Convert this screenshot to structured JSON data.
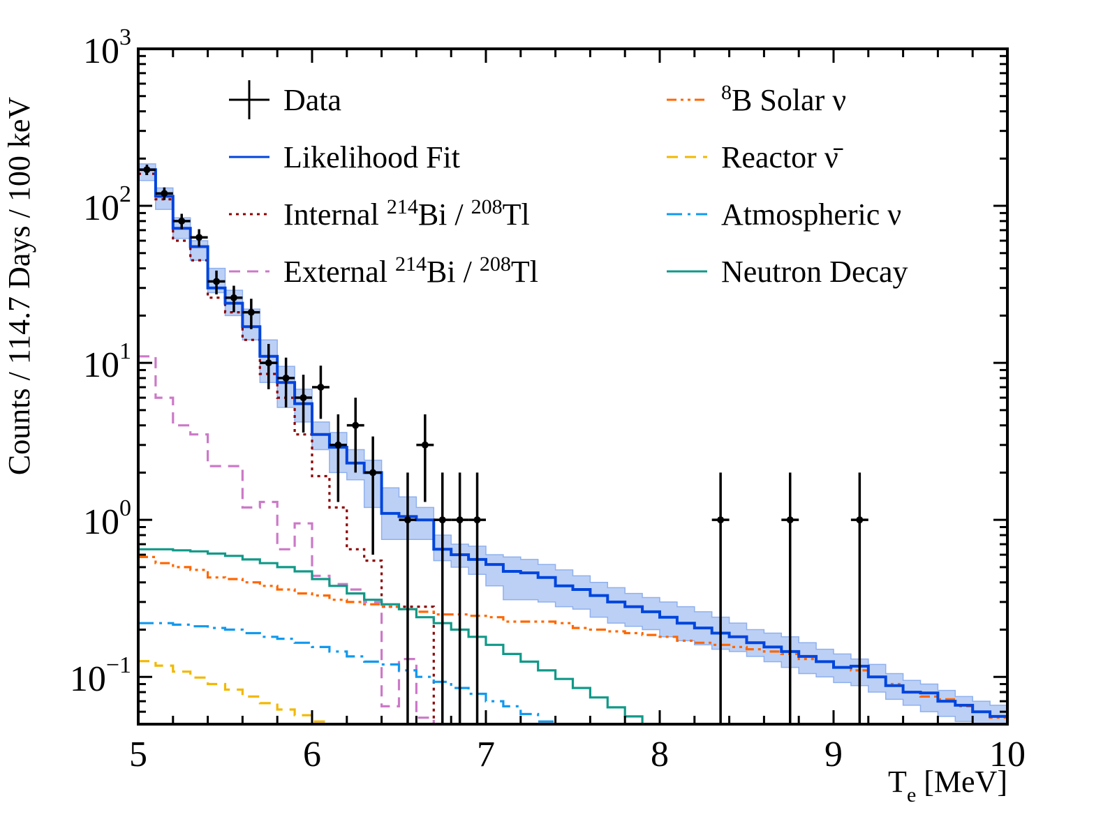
{
  "chart_data": {
    "type": "line",
    "subtype": "step-histogram-with-errorbars",
    "title": "",
    "xlabel": "T_e [MeV]",
    "xlabel_main": "T",
    "xlabel_sub": "e",
    "xlabel_rest": " [MeV]",
    "ylabel": "Counts / 114.7 Days / 100 keV",
    "xlim": [
      5,
      10
    ],
    "ylim": [
      0.05,
      1000
    ],
    "yscale": "log",
    "grid": false,
    "legend_placement": "top (two columns)",
    "x_ticks": [
      "5",
      "6",
      "7",
      "8",
      "9",
      "10"
    ],
    "y_ticks": [
      {
        "base": "10",
        "exp": "3",
        "value": 1000
      },
      {
        "base": "10",
        "exp": "2",
        "value": 100
      },
      {
        "base": "10",
        "exp": "1",
        "value": 10
      },
      {
        "base": "10",
        "exp": "0",
        "value": 1
      },
      {
        "base": "10",
        "exp": "−1",
        "value": 0.1
      }
    ],
    "bin_edges_start": 5.0,
    "bin_width": 0.1,
    "data": {
      "name": "Data",
      "x": [
        5.05,
        5.15,
        5.25,
        5.35,
        5.45,
        5.55,
        5.65,
        5.75,
        5.85,
        5.95,
        6.05,
        6.15,
        6.25,
        6.35,
        6.55,
        6.65,
        6.75,
        6.85,
        6.95,
        8.35,
        8.75,
        9.15
      ],
      "y": [
        170,
        120,
        80,
        63,
        33,
        26,
        21,
        10,
        8,
        6,
        7,
        3,
        4,
        2,
        1,
        3,
        1,
        1,
        1,
        1,
        1,
        1
      ],
      "err_low": [
        13,
        11,
        9,
        8,
        5.7,
        5,
        4.6,
        3.2,
        2.8,
        2.4,
        2.6,
        1.7,
        2,
        1.4,
        1,
        1.7,
        1,
        1,
        1,
        1,
        1,
        1
      ],
      "err_high": [
        13,
        11,
        9,
        8,
        5.7,
        5,
        4.6,
        3.2,
        2.8,
        2.4,
        2.6,
        1.7,
        2,
        1.4,
        1,
        1.7,
        1,
        1,
        1,
        1,
        1,
        1
      ]
    },
    "series": [
      {
        "name": "Likelihood Fit",
        "color": "#0044dd",
        "style": "solid",
        "values": [
          170,
          115,
          72,
          55,
          30,
          24,
          17,
          11,
          7.5,
          5.5,
          3.5,
          2.9,
          2.3,
          2.0,
          1.1,
          1.05,
          1.0,
          0.65,
          0.6,
          0.56,
          0.52,
          0.47,
          0.46,
          0.43,
          0.38,
          0.36,
          0.33,
          0.3,
          0.28,
          0.26,
          0.24,
          0.22,
          0.205,
          0.19,
          0.18,
          0.165,
          0.155,
          0.145,
          0.135,
          0.125,
          0.115,
          0.117,
          0.1,
          0.088,
          0.08,
          0.079,
          0.07,
          0.066,
          0.06,
          0.056
        ],
        "band_low": [
          145,
          95,
          62,
          45,
          28,
          20,
          14,
          7.5,
          5.2,
          4.2,
          2.8,
          2.0,
          1.8,
          1.2,
          0.75,
          0.75,
          0.75,
          0.55,
          0.5,
          0.45,
          0.38,
          0.31,
          0.31,
          0.3,
          0.28,
          0.27,
          0.24,
          0.22,
          0.21,
          0.2,
          0.18,
          0.17,
          0.16,
          0.15,
          0.145,
          0.135,
          0.125,
          0.115,
          0.105,
          0.1,
          0.092,
          0.088,
          0.08,
          0.072,
          0.066,
          0.06,
          0.056,
          0.052,
          0.048,
          0.046
        ],
        "band_high": [
          185,
          130,
          84,
          60,
          40,
          29,
          22,
          14,
          9.5,
          6.8,
          4.2,
          3.6,
          2.8,
          2.4,
          1.6,
          1.4,
          1.2,
          0.8,
          0.7,
          0.68,
          0.6,
          0.58,
          0.56,
          0.52,
          0.48,
          0.44,
          0.4,
          0.37,
          0.34,
          0.32,
          0.3,
          0.28,
          0.26,
          0.24,
          0.22,
          0.2,
          0.19,
          0.18,
          0.165,
          0.15,
          0.14,
          0.13,
          0.12,
          0.105,
          0.095,
          0.09,
          0.082,
          0.075,
          0.07,
          0.066
        ]
      },
      {
        "name": "Internal 214Bi / 208Tl",
        "label_pre": "Internal ",
        "iso1": "214",
        "el1": "Bi",
        "sep": " / ",
        "iso2": "208",
        "el2": "Tl",
        "color": "#8b0000",
        "style": "dotted",
        "values": [
          160,
          110,
          60,
          45,
          26,
          21,
          14,
          8.5,
          6,
          3.5,
          1.9,
          1.2,
          0.65,
          0.55,
          0.28,
          0.28,
          0.28,
          0.01,
          0.01,
          0.01,
          0.01,
          0.01,
          0.01,
          0.01,
          0.01,
          0.01,
          0.01,
          0.01,
          0.01,
          0.01,
          0.01,
          0.01,
          0.01,
          0.01,
          0.01,
          0.01,
          0.01,
          0.01,
          0.01,
          0.01,
          0.01,
          0.01,
          0.01,
          0.01,
          0.01,
          0.01,
          0.01,
          0.01,
          0.01,
          0.01
        ]
      },
      {
        "name": "External 214Bi / 208Tl",
        "label_pre": "External ",
        "iso1": "214",
        "el1": "Bi",
        "sep": " / ",
        "iso2": "208",
        "el2": "Tl",
        "color": "#cc79c8",
        "style": "dashed",
        "values": [
          11,
          6,
          4,
          3.5,
          2.2,
          2.2,
          1.2,
          1.3,
          0.65,
          0.95,
          0.44,
          0.39,
          0.36,
          0.3,
          0.065,
          0.13,
          0.055,
          0.01,
          0.01,
          0.01,
          0.01,
          0.01,
          0.01,
          0.01,
          0.01,
          0.01,
          0.01,
          0.01,
          0.01,
          0.01,
          0.01,
          0.01,
          0.01,
          0.01,
          0.01,
          0.01,
          0.01,
          0.01,
          0.01,
          0.01,
          0.01,
          0.01,
          0.01,
          0.01,
          0.01,
          0.01,
          0.01,
          0.01,
          0.01,
          0.01
        ]
      },
      {
        "name": "8B Solar ν",
        "label_iso": "8",
        "label_rest": "B Solar ν",
        "color": "#ff6600",
        "style": "dashdotdot",
        "values": [
          0.58,
          0.53,
          0.5,
          0.48,
          0.43,
          0.42,
          0.4,
          0.38,
          0.36,
          0.34,
          0.33,
          0.31,
          0.3,
          0.29,
          0.28,
          0.27,
          0.26,
          0.25,
          0.25,
          0.245,
          0.24,
          0.225,
          0.225,
          0.225,
          0.22,
          0.205,
          0.2,
          0.195,
          0.19,
          0.185,
          0.18,
          0.17,
          0.165,
          0.16,
          0.155,
          0.15,
          0.145,
          0.14,
          0.13,
          0.125,
          0.115,
          0.11,
          0.1,
          0.09,
          0.08,
          0.075,
          0.072,
          0.065,
          0.06,
          0.055
        ]
      },
      {
        "name": "Reactor ν̄",
        "color": "#f2b800",
        "style": "dashed",
        "values": [
          0.126,
          0.118,
          0.108,
          0.099,
          0.09,
          0.083,
          0.075,
          0.068,
          0.062,
          0.057,
          0.052,
          0.048,
          0.044,
          0.04,
          0.036,
          0.033,
          0.03,
          0.027,
          0.024,
          0.022,
          0.02,
          0.018,
          0.016,
          0.014,
          0.012,
          0.011,
          0.01,
          0.009,
          0.008,
          0.007,
          0.006,
          0.005,
          0.005,
          0.004,
          0.004,
          0.003,
          0.003,
          0.003,
          0.002,
          0.002,
          0.002,
          0.002,
          0.001,
          0.001,
          0.001,
          0.001,
          0.001,
          0.001,
          0.001,
          0.001
        ]
      },
      {
        "name": "Atmospheric ν",
        "color": "#1199ee",
        "style": "dashdot",
        "values": [
          0.22,
          0.22,
          0.215,
          0.21,
          0.205,
          0.2,
          0.19,
          0.18,
          0.175,
          0.165,
          0.155,
          0.145,
          0.135,
          0.125,
          0.12,
          0.11,
          0.1,
          0.093,
          0.085,
          0.078,
          0.07,
          0.065,
          0.058,
          0.052,
          0.047,
          0.043,
          0.039,
          0.035,
          0.032,
          0.029,
          0.026,
          0.024,
          0.022,
          0.02,
          0.018,
          0.016,
          0.015,
          0.013,
          0.012,
          0.011,
          0.01,
          0.009,
          0.008,
          0.007,
          0.006,
          0.006,
          0.005,
          0.005,
          0.004,
          0.004
        ]
      },
      {
        "name": "Neutron Decay",
        "color": "#119988",
        "style": "solid",
        "values": [
          0.65,
          0.65,
          0.64,
          0.63,
          0.61,
          0.59,
          0.56,
          0.53,
          0.5,
          0.47,
          0.42,
          0.38,
          0.34,
          0.31,
          0.29,
          0.27,
          0.24,
          0.22,
          0.2,
          0.18,
          0.16,
          0.14,
          0.125,
          0.11,
          0.097,
          0.085,
          0.074,
          0.064,
          0.056,
          0.049,
          0.043,
          0.037,
          0.032,
          0.028,
          0.024,
          0.021,
          0.018,
          0.015,
          0.013,
          0.011,
          0.01,
          0.009,
          0.008,
          0.007,
          0.006,
          0.005,
          0.004,
          0.004,
          0.003,
          0.003
        ]
      }
    ]
  }
}
